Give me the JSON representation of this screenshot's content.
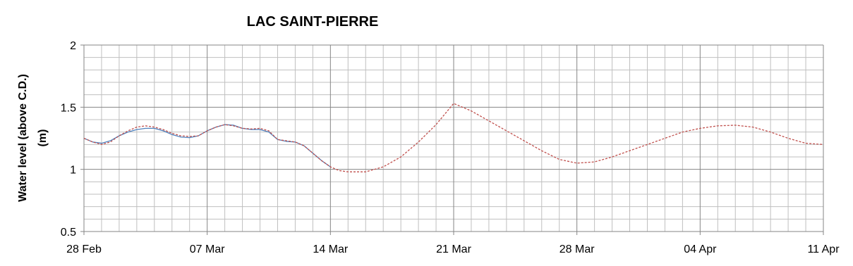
{
  "chart_data": {
    "type": "line",
    "title": "LAC SAINT-PIERRE",
    "ylabel": [
      "Water level (above C.D.)",
      "(m)"
    ],
    "xlim": [
      0,
      42
    ],
    "xticks": [
      {
        "value": 0,
        "label": "28 Feb"
      },
      {
        "value": 7,
        "label": "07 Mar"
      },
      {
        "value": 14,
        "label": "14 Mar"
      },
      {
        "value": 21,
        "label": "21 Mar"
      },
      {
        "value": 28,
        "label": "28 Mar"
      },
      {
        "value": 35,
        "label": "04 Apr"
      },
      {
        "value": 42,
        "label": "11 Apr"
      }
    ],
    "ylim": [
      0.5,
      2
    ],
    "yticks": [
      0.5,
      1,
      1.5,
      2
    ],
    "grid": true,
    "series": [
      {
        "color": "#4f81bd",
        "dash": false,
        "x": [
          0,
          0.5,
          1,
          1.5,
          2,
          2.5,
          3,
          3.5,
          4,
          4.5,
          5,
          5.5,
          6,
          6.5,
          7,
          7.5,
          8,
          8.5,
          9,
          9.5,
          10,
          10.5,
          11,
          11.5,
          12,
          12.5,
          13,
          13.5,
          14
        ],
        "values": [
          1.25,
          1.22,
          1.21,
          1.23,
          1.27,
          1.3,
          1.32,
          1.33,
          1.33,
          1.31,
          1.28,
          1.26,
          1.255,
          1.27,
          1.31,
          1.34,
          1.36,
          1.355,
          1.33,
          1.32,
          1.32,
          1.3,
          1.24,
          1.225,
          1.22,
          1.19,
          1.13,
          1.07,
          1.02
        ]
      },
      {
        "color": "#c0504d",
        "dash": true,
        "x": [
          0,
          0.5,
          1,
          1.5,
          2,
          2.5,
          3,
          3.5,
          4,
          4.5,
          5,
          5.5,
          6,
          6.5,
          7,
          7.5,
          8,
          8.5,
          9,
          9.5,
          10,
          10.5,
          11,
          11.5,
          12,
          12.5,
          13,
          13.5,
          14,
          14.5,
          15,
          16,
          17,
          18,
          19,
          20,
          21,
          22,
          23,
          24,
          25,
          26,
          27,
          28,
          29,
          30,
          31,
          32,
          33,
          34,
          35,
          36,
          37,
          38,
          39,
          40,
          41,
          42
        ],
        "values": [
          1.25,
          1.22,
          1.2,
          1.22,
          1.27,
          1.31,
          1.34,
          1.35,
          1.34,
          1.32,
          1.29,
          1.27,
          1.265,
          1.27,
          1.31,
          1.34,
          1.36,
          1.35,
          1.33,
          1.325,
          1.33,
          1.31,
          1.24,
          1.23,
          1.22,
          1.19,
          1.13,
          1.07,
          1.02,
          0.99,
          0.98,
          0.98,
          1.02,
          1.1,
          1.22,
          1.36,
          1.53,
          1.47,
          1.39,
          1.31,
          1.23,
          1.15,
          1.08,
          1.05,
          1.06,
          1.1,
          1.15,
          1.2,
          1.25,
          1.3,
          1.33,
          1.35,
          1.355,
          1.34,
          1.3,
          1.25,
          1.21,
          1.2
        ]
      }
    ]
  }
}
